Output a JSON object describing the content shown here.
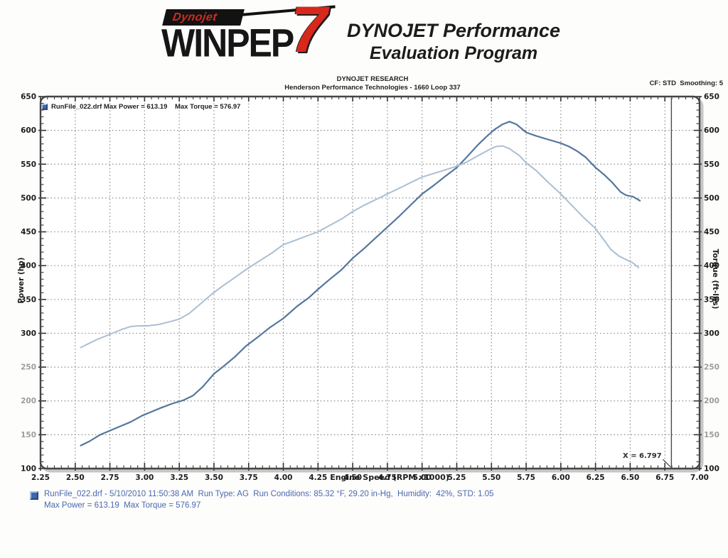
{
  "header": {
    "logo": {
      "brand": "Dynojet",
      "product": "WINPEP",
      "seven": "7"
    },
    "tagline_line1": "DYNOJET Performance",
    "tagline_line2": "Evaluation Program",
    "org_line1": "DYNOJET RESEARCH",
    "org_line2": "Henderson Performance Technologies - 1660 Loop 337",
    "settings": "CF: STD  Smoothing: 5"
  },
  "chart_data": {
    "type": "line",
    "title": "",
    "xlabel": "Engine Speed (RPM x1000)",
    "ylabel_left": "Power (hp)",
    "ylabel_right": "Torque (ft-lbs)",
    "xlim": [
      2.25,
      7.0
    ],
    "ylim": [
      100,
      650
    ],
    "x_major_step": 0.25,
    "x_minor_step": 0.05,
    "y_major_step": 50,
    "y_minor_step": 10,
    "grid": "dotted",
    "grid_color": "#8f8f8f",
    "legend_position": "top-left",
    "x_ticks": [
      2.25,
      2.5,
      2.75,
      3.0,
      3.25,
      3.5,
      3.75,
      4.0,
      4.25,
      4.5,
      4.75,
      5.0,
      5.25,
      5.5,
      5.75,
      6.0,
      6.25,
      6.5,
      6.75,
      7.0
    ],
    "y_ticks": [
      100,
      150,
      200,
      250,
      300,
      350,
      400,
      450,
      500,
      550,
      600,
      650
    ],
    "faded_y_labels": [
      150,
      200,
      250
    ],
    "legend": {
      "swatch_color": "#3d68ad",
      "text": "RunFile_022.drf Max Power = 613.19    Max Torque = 576.97"
    },
    "cursor": {
      "x": 6.797,
      "label": "X = 6.797"
    },
    "max_power": 613.19,
    "max_torque": 576.97,
    "series": [
      {
        "name": "Power (hp)",
        "data_name": "power-curve",
        "color": "#54779c",
        "width": 2.2,
        "points": [
          [
            2.54,
            134
          ],
          [
            2.6,
            140
          ],
          [
            2.68,
            150
          ],
          [
            2.75,
            156
          ],
          [
            2.82,
            162
          ],
          [
            2.9,
            169
          ],
          [
            2.98,
            178
          ],
          [
            3.05,
            184
          ],
          [
            3.12,
            190
          ],
          [
            3.2,
            196
          ],
          [
            3.28,
            201
          ],
          [
            3.35,
            208
          ],
          [
            3.42,
            221
          ],
          [
            3.5,
            240
          ],
          [
            3.58,
            253
          ],
          [
            3.65,
            265
          ],
          [
            3.73,
            281
          ],
          [
            3.82,
            295
          ],
          [
            3.9,
            308
          ],
          [
            4.0,
            322
          ],
          [
            4.1,
            340
          ],
          [
            4.18,
            352
          ],
          [
            4.25,
            365
          ],
          [
            4.33,
            379
          ],
          [
            4.42,
            394
          ],
          [
            4.5,
            411
          ],
          [
            4.58,
            425
          ],
          [
            4.67,
            442
          ],
          [
            4.75,
            457
          ],
          [
            4.83,
            472
          ],
          [
            4.92,
            490
          ],
          [
            5.0,
            506
          ],
          [
            5.08,
            518
          ],
          [
            5.16,
            531
          ],
          [
            5.25,
            545
          ],
          [
            5.32,
            560
          ],
          [
            5.4,
            578
          ],
          [
            5.46,
            590
          ],
          [
            5.52,
            601
          ],
          [
            5.58,
            609
          ],
          [
            5.63,
            613
          ],
          [
            5.68,
            609
          ],
          [
            5.75,
            597
          ],
          [
            5.82,
            592
          ],
          [
            5.9,
            587
          ],
          [
            6.0,
            581
          ],
          [
            6.06,
            576
          ],
          [
            6.12,
            569
          ],
          [
            6.18,
            560
          ],
          [
            6.25,
            545
          ],
          [
            6.31,
            535
          ],
          [
            6.37,
            523
          ],
          [
            6.43,
            509
          ],
          [
            6.47,
            504
          ],
          [
            6.52,
            502
          ],
          [
            6.57,
            496
          ]
        ]
      },
      {
        "name": "Torque (ft-lbs)",
        "data_name": "torque-curve",
        "color": "#aabfd3",
        "width": 2,
        "points": [
          [
            2.54,
            279
          ],
          [
            2.6,
            285
          ],
          [
            2.66,
            291
          ],
          [
            2.72,
            296
          ],
          [
            2.78,
            301
          ],
          [
            2.84,
            306
          ],
          [
            2.9,
            310
          ],
          [
            2.96,
            311
          ],
          [
            3.02,
            311
          ],
          [
            3.1,
            313
          ],
          [
            3.18,
            317
          ],
          [
            3.25,
            321
          ],
          [
            3.32,
            329
          ],
          [
            3.4,
            343
          ],
          [
            3.48,
            357
          ],
          [
            3.55,
            368
          ],
          [
            3.64,
            381
          ],
          [
            3.73,
            394
          ],
          [
            3.82,
            406
          ],
          [
            3.92,
            419
          ],
          [
            4.0,
            431
          ],
          [
            4.08,
            437
          ],
          [
            4.17,
            444
          ],
          [
            4.25,
            450
          ],
          [
            4.33,
            459
          ],
          [
            4.42,
            469
          ],
          [
            4.5,
            480
          ],
          [
            4.58,
            489
          ],
          [
            4.67,
            498
          ],
          [
            4.75,
            506
          ],
          [
            4.83,
            514
          ],
          [
            4.92,
            523
          ],
          [
            5.0,
            531
          ],
          [
            5.08,
            536
          ],
          [
            5.16,
            541
          ],
          [
            5.25,
            547
          ],
          [
            5.32,
            553
          ],
          [
            5.4,
            562
          ],
          [
            5.47,
            570
          ],
          [
            5.53,
            576
          ],
          [
            5.58,
            577
          ],
          [
            5.63,
            573
          ],
          [
            5.7,
            563
          ],
          [
            5.75,
            552
          ],
          [
            5.82,
            541
          ],
          [
            5.9,
            525
          ],
          [
            6.0,
            506
          ],
          [
            6.08,
            489
          ],
          [
            6.16,
            472
          ],
          [
            6.25,
            455
          ],
          [
            6.3,
            441
          ],
          [
            6.36,
            424
          ],
          [
            6.42,
            414
          ],
          [
            6.47,
            409
          ],
          [
            6.52,
            404
          ],
          [
            6.56,
            397
          ]
        ]
      }
    ]
  },
  "footer": {
    "swatch_color": "#3d68ad",
    "line1": "RunFile_022.drf - 5/10/2010 11:50:38 AM  Run Type: AG  Run Conditions: 85.32 °F, 29.20 in-Hg,  Humidity:  42%, STD: 1.05",
    "line2": "Max Power = 613.19  Max Torque = 576.97"
  }
}
